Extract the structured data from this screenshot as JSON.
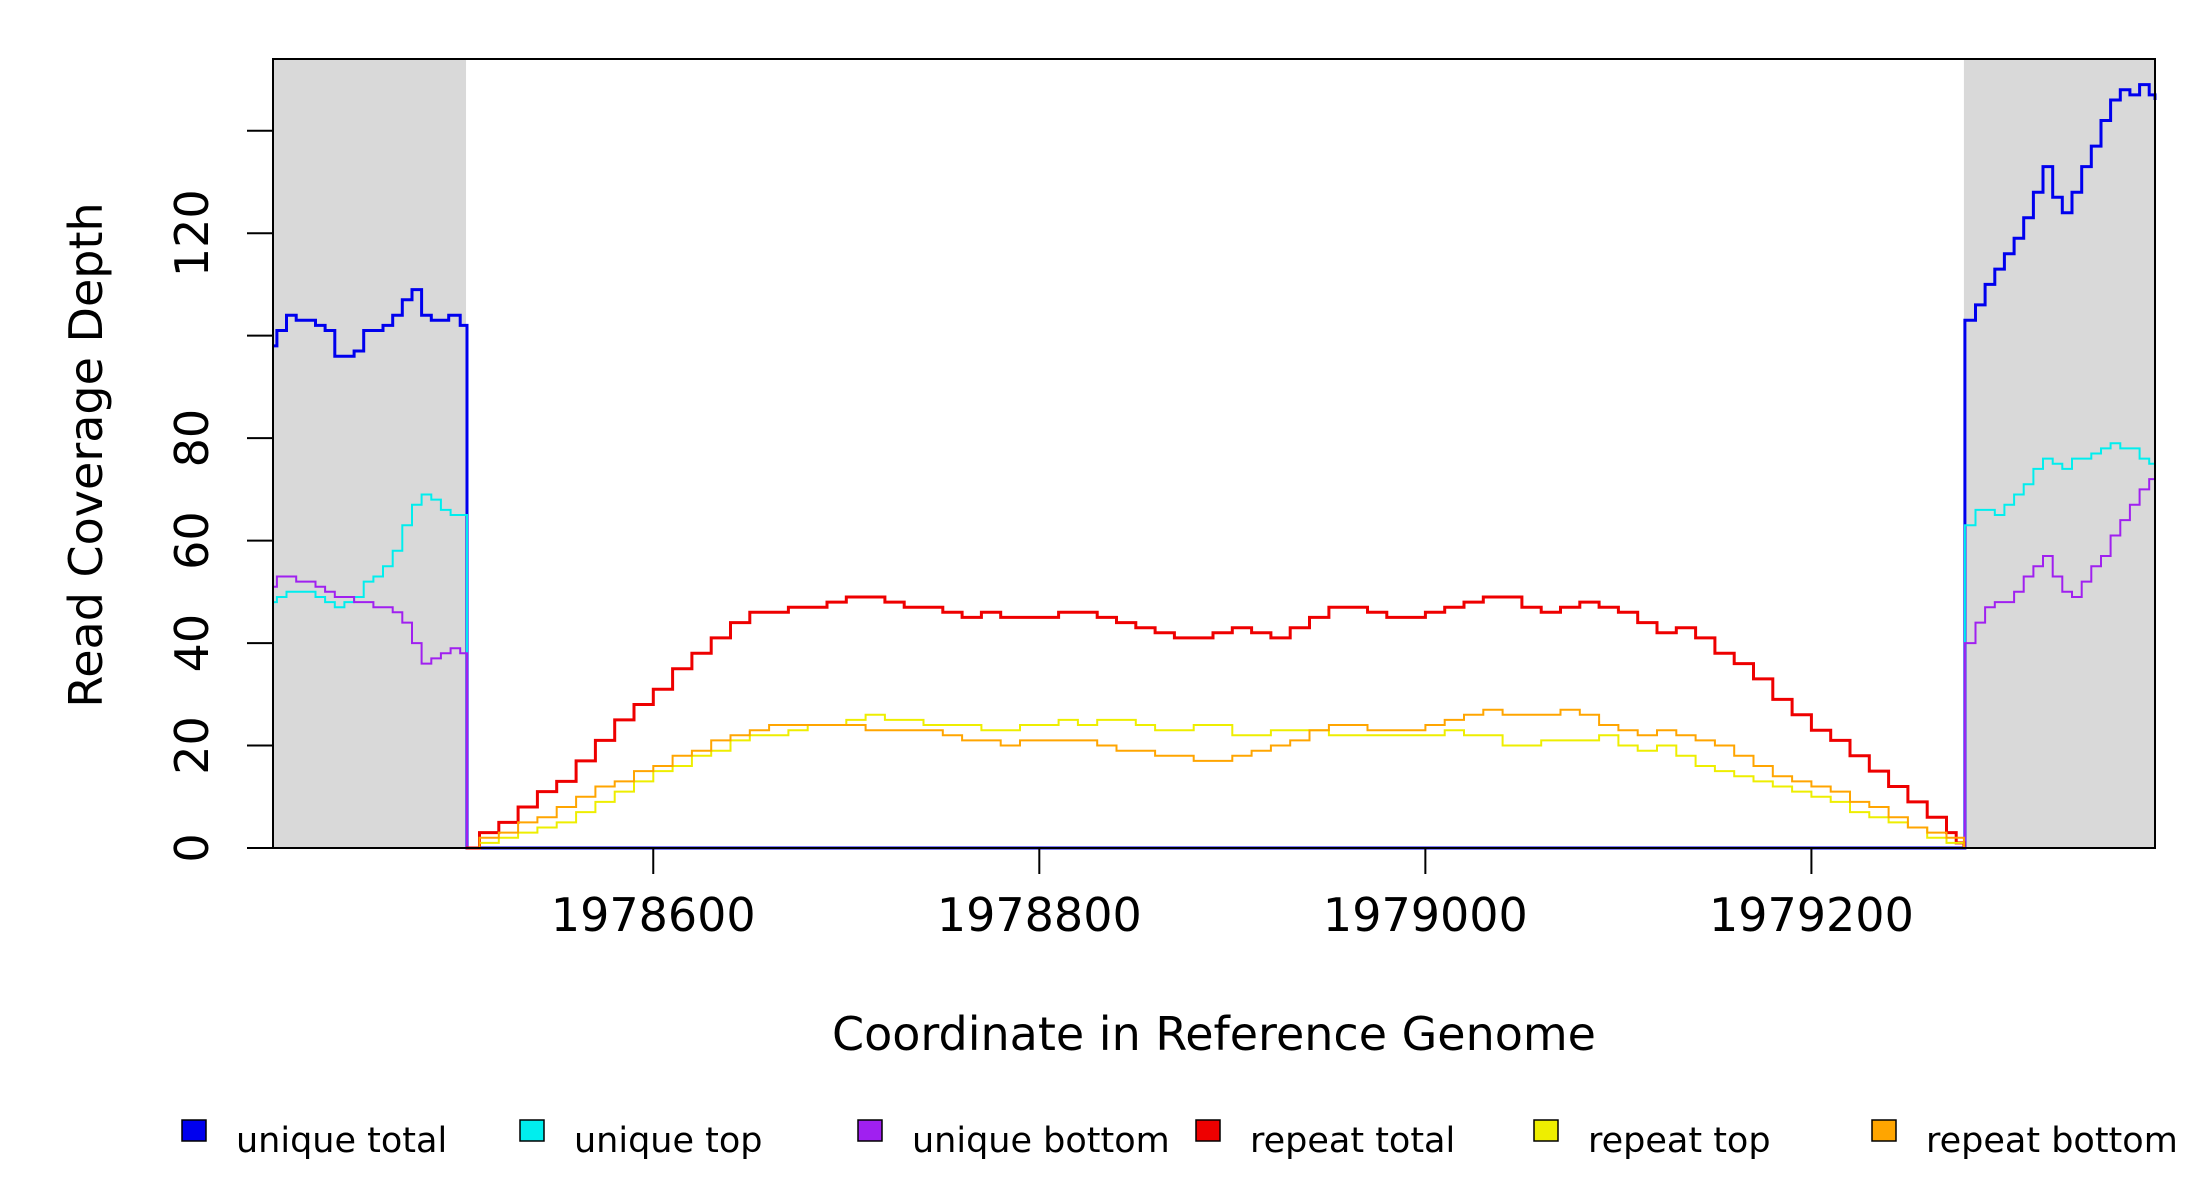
{
  "chart_data": {
    "type": "line",
    "title": "",
    "xlabel": "Coordinate in Reference Genome",
    "ylabel": "Read Coverage Depth",
    "xlim": [
      1978403,
      1979378
    ],
    "ylim": [
      0,
      154
    ],
    "x_ticks": [
      1978600,
      1978800,
      1979000,
      1979200
    ],
    "y_ticks": [
      0,
      20,
      40,
      60,
      80,
      100,
      120,
      140
    ],
    "y_tick_labels": [
      "0",
      "20",
      "40",
      "60",
      "80",
      "",
      "120",
      ""
    ],
    "grid": false,
    "step": true,
    "shaded_regions": [
      {
        "x_start": 1978403,
        "x_end": 1978503,
        "color": "#d9d9d9"
      },
      {
        "x_start": 1979279,
        "x_end": 1979378,
        "color": "#d9d9d9"
      }
    ],
    "series": [
      {
        "name": "unique total",
        "color": "#0000ee",
        "width": 3,
        "x": [
          1978403,
          1978405,
          1978410,
          1978415,
          1978420,
          1978425,
          1978430,
          1978435,
          1978440,
          1978445,
          1978450,
          1978455,
          1978460,
          1978465,
          1978470,
          1978475,
          1978480,
          1978485,
          1978490,
          1978494,
          1978500,
          1978503,
          1978503.5,
          1979279,
          1979279.5,
          1979285,
          1979290,
          1979295,
          1979300,
          1979305,
          1979310,
          1979315,
          1979320,
          1979325,
          1979330,
          1979335,
          1979340,
          1979345,
          1979350,
          1979355,
          1979360,
          1979365,
          1979370,
          1979375,
          1979378
        ],
        "y": [
          98,
          101,
          104,
          103,
          103,
          102,
          101,
          96,
          96,
          97,
          101,
          101,
          102,
          104,
          107,
          109,
          104,
          103,
          103,
          104,
          102,
          102,
          0,
          0,
          103,
          106,
          110,
          113,
          116,
          119,
          123,
          128,
          133,
          127,
          124,
          128,
          133,
          137,
          142,
          146,
          148,
          147,
          149,
          147,
          146
        ]
      },
      {
        "name": "unique top",
        "color": "#00eeee",
        "width": 2,
        "x": [
          1978403,
          1978405,
          1978410,
          1978415,
          1978420,
          1978425,
          1978430,
          1978435,
          1978440,
          1978445,
          1978450,
          1978455,
          1978460,
          1978465,
          1978470,
          1978475,
          1978480,
          1978485,
          1978490,
          1978495,
          1978500,
          1978503,
          1978503.5,
          1979279,
          1979279.5,
          1979285,
          1979290,
          1979295,
          1979300,
          1979305,
          1979310,
          1979315,
          1979320,
          1979325,
          1979330,
          1979335,
          1979340,
          1979345,
          1979350,
          1979355,
          1979360,
          1979365,
          1979370,
          1979375,
          1979378
        ],
        "y": [
          48,
          49,
          50,
          50,
          50,
          49,
          48,
          47,
          48,
          49,
          52,
          53,
          55,
          58,
          63,
          67,
          69,
          68,
          66,
          65,
          65,
          65,
          0,
          0,
          63,
          66,
          66,
          65,
          67,
          69,
          71,
          74,
          76,
          75,
          74,
          76,
          76,
          77,
          78,
          79,
          78,
          78,
          76,
          75,
          74
        ]
      },
      {
        "name": "unique bottom",
        "color": "#a020f0",
        "width": 2,
        "x": [
          1978403,
          1978405,
          1978410,
          1978415,
          1978420,
          1978425,
          1978430,
          1978435,
          1978440,
          1978445,
          1978450,
          1978455,
          1978460,
          1978465,
          1978470,
          1978475,
          1978480,
          1978485,
          1978490,
          1978495,
          1978500,
          1978503,
          1978503.5,
          1979279,
          1979279.5,
          1979285,
          1979290,
          1979295,
          1979300,
          1979305,
          1979310,
          1979315,
          1979320,
          1979325,
          1979330,
          1979335,
          1979340,
          1979345,
          1979350,
          1979355,
          1979360,
          1979365,
          1979370,
          1979375,
          1979378
        ],
        "y": [
          51,
          53,
          53,
          52,
          52,
          51,
          50,
          49,
          49,
          48,
          48,
          47,
          47,
          46,
          44,
          40,
          36,
          37,
          38,
          39,
          38,
          38,
          0,
          0,
          40,
          44,
          47,
          48,
          48,
          50,
          53,
          55,
          57,
          53,
          50,
          49,
          52,
          55,
          57,
          61,
          64,
          67,
          70,
          72,
          73
        ]
      },
      {
        "name": "repeat total",
        "color": "#ee0000",
        "width": 3,
        "x": [
          1978503,
          1978510,
          1978520,
          1978530,
          1978540,
          1978550,
          1978560,
          1978570,
          1978580,
          1978590,
          1978600,
          1978610,
          1978620,
          1978630,
          1978640,
          1978650,
          1978660,
          1978670,
          1978680,
          1978690,
          1978700,
          1978710,
          1978720,
          1978730,
          1978740,
          1978750,
          1978760,
          1978770,
          1978780,
          1978790,
          1978800,
          1978810,
          1978820,
          1978830,
          1978840,
          1978850,
          1978860,
          1978870,
          1978880,
          1978890,
          1978900,
          1978910,
          1978920,
          1978930,
          1978940,
          1978950,
          1978960,
          1978970,
          1978980,
          1978990,
          1979000,
          1979010,
          1979020,
          1979030,
          1979040,
          1979050,
          1979060,
          1979070,
          1979080,
          1979090,
          1979100,
          1979110,
          1979120,
          1979130,
          1979140,
          1979150,
          1979160,
          1979170,
          1979180,
          1979190,
          1979200,
          1979210,
          1979220,
          1979230,
          1979240,
          1979250,
          1979260,
          1979270,
          1979275,
          1979279
        ],
        "y": [
          0,
          3,
          5,
          8,
          11,
          13,
          17,
          21,
          25,
          28,
          31,
          35,
          38,
          41,
          44,
          46,
          46,
          47,
          47,
          48,
          49,
          49,
          48,
          47,
          47,
          46,
          45,
          46,
          45,
          45,
          45,
          46,
          46,
          45,
          44,
          43,
          42,
          41,
          41,
          42,
          43,
          42,
          41,
          43,
          45,
          47,
          47,
          46,
          45,
          45,
          46,
          47,
          48,
          49,
          49,
          47,
          46,
          47,
          48,
          47,
          46,
          44,
          42,
          43,
          41,
          38,
          36,
          33,
          29,
          26,
          23,
          21,
          18,
          15,
          12,
          9,
          6,
          3,
          1,
          0
        ]
      },
      {
        "name": "repeat top",
        "color": "#eeee00",
        "width": 2,
        "x": [
          1978503,
          1978510,
          1978520,
          1978530,
          1978540,
          1978550,
          1978560,
          1978570,
          1978580,
          1978590,
          1978600,
          1978610,
          1978620,
          1978630,
          1978640,
          1978650,
          1978660,
          1978670,
          1978680,
          1978690,
          1978700,
          1978710,
          1978720,
          1978730,
          1978740,
          1978750,
          1978760,
          1978770,
          1978780,
          1978790,
          1978800,
          1978810,
          1978820,
          1978830,
          1978840,
          1978850,
          1978860,
          1978870,
          1978880,
          1978890,
          1978900,
          1978910,
          1978920,
          1978930,
          1978940,
          1978950,
          1978960,
          1978970,
          1978980,
          1978990,
          1979000,
          1979010,
          1979020,
          1979030,
          1979040,
          1979050,
          1979060,
          1979070,
          1979080,
          1979090,
          1979100,
          1979110,
          1979120,
          1979130,
          1979140,
          1979150,
          1979160,
          1979170,
          1979180,
          1979190,
          1979200,
          1979210,
          1979220,
          1979230,
          1979240,
          1979250,
          1979260,
          1979270,
          1979279
        ],
        "y": [
          0,
          1,
          2,
          3,
          4,
          5,
          7,
          9,
          11,
          13,
          15,
          16,
          18,
          19,
          21,
          22,
          22,
          23,
          24,
          24,
          25,
          26,
          25,
          25,
          24,
          24,
          24,
          23,
          23,
          24,
          24,
          25,
          24,
          25,
          25,
          24,
          23,
          23,
          24,
          24,
          22,
          22,
          23,
          23,
          23,
          22,
          22,
          22,
          22,
          22,
          22,
          23,
          22,
          22,
          20,
          20,
          21,
          21,
          21,
          22,
          20,
          19,
          20,
          18,
          16,
          15,
          14,
          13,
          12,
          11,
          10,
          9,
          7,
          6,
          5,
          4,
          2,
          1,
          0
        ]
      },
      {
        "name": "repeat bottom",
        "color": "#ffa500",
        "width": 2,
        "x": [
          1978503,
          1978510,
          1978520,
          1978530,
          1978540,
          1978550,
          1978560,
          1978570,
          1978580,
          1978590,
          1978600,
          1978610,
          1978620,
          1978630,
          1978640,
          1978650,
          1978660,
          1978670,
          1978680,
          1978690,
          1978700,
          1978710,
          1978720,
          1978730,
          1978740,
          1978750,
          1978760,
          1978770,
          1978780,
          1978790,
          1978800,
          1978810,
          1978820,
          1978830,
          1978840,
          1978850,
          1978860,
          1978870,
          1978880,
          1978890,
          1978900,
          1978910,
          1978920,
          1978930,
          1978940,
          1978950,
          1978960,
          1978970,
          1978980,
          1978990,
          1979000,
          1979010,
          1979020,
          1979030,
          1979040,
          1979050,
          1979060,
          1979070,
          1979080,
          1979090,
          1979100,
          1979110,
          1979120,
          1979130,
          1979140,
          1979150,
          1979160,
          1979170,
          1979180,
          1979190,
          1979200,
          1979210,
          1979220,
          1979230,
          1979240,
          1979250,
          1979260,
          1979270,
          1979279
        ],
        "y": [
          0,
          2,
          3,
          5,
          6,
          8,
          10,
          12,
          13,
          15,
          16,
          18,
          19,
          21,
          22,
          23,
          24,
          24,
          24,
          24,
          24,
          23,
          23,
          23,
          23,
          22,
          21,
          21,
          20,
          21,
          21,
          21,
          21,
          20,
          19,
          19,
          18,
          18,
          17,
          17,
          18,
          19,
          20,
          21,
          23,
          24,
          24,
          23,
          23,
          23,
          24,
          25,
          26,
          27,
          26,
          26,
          26,
          27,
          26,
          24,
          23,
          22,
          23,
          22,
          21,
          20,
          18,
          16,
          14,
          13,
          12,
          11,
          9,
          8,
          6,
          4,
          3,
          2,
          0
        ]
      }
    ],
    "legend": {
      "placement": "bottom",
      "items": [
        {
          "label": "unique total",
          "color": "#0000ee"
        },
        {
          "label": "unique top",
          "color": "#00eeee"
        },
        {
          "label": "unique bottom",
          "color": "#a020f0"
        },
        {
          "label": "repeat total",
          "color": "#ee0000"
        },
        {
          "label": "repeat top",
          "color": "#eeee00"
        },
        {
          "label": "repeat bottom",
          "color": "#ffa500"
        }
      ]
    }
  }
}
